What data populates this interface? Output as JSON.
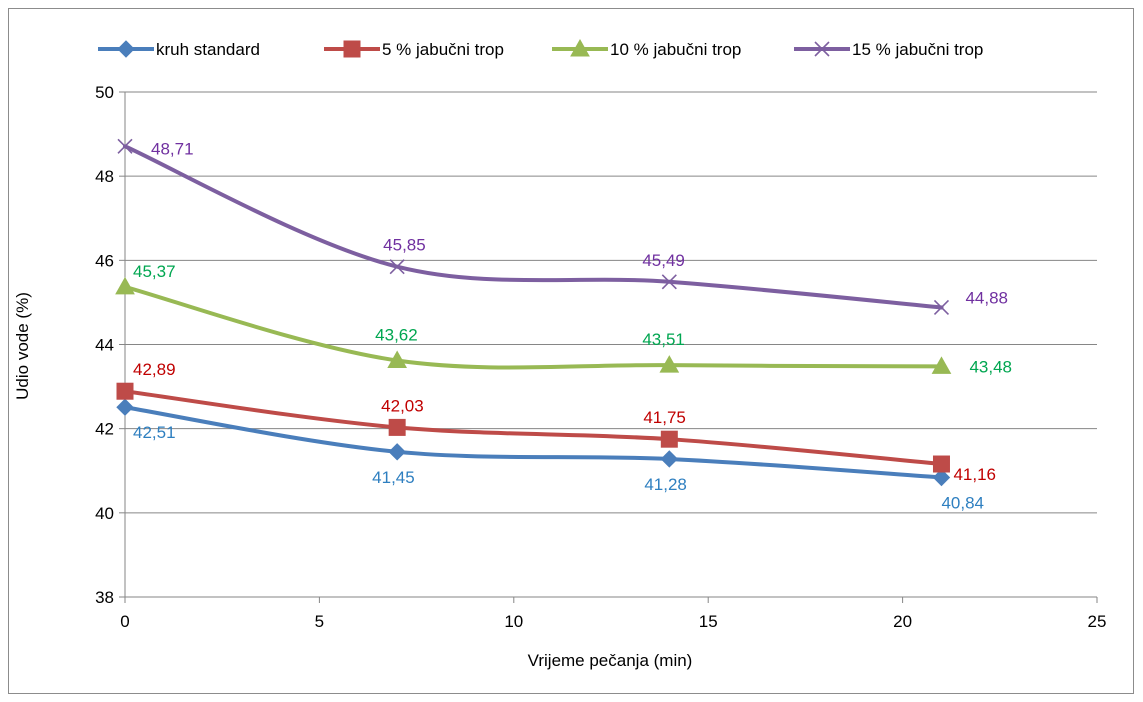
{
  "chart_data": {
    "type": "line",
    "xlabel": "Vrijeme pečanja (min)",
    "ylabel": "Udio vode (%)",
    "xlim": [
      0,
      25
    ],
    "ylim": [
      38,
      50
    ],
    "x_ticks": [
      "0",
      "5",
      "10",
      "15",
      "20",
      "25"
    ],
    "y_ticks": [
      "38",
      "40",
      "42",
      "44",
      "46",
      "48",
      "50"
    ],
    "grid": "horizontal",
    "legend_position": "top",
    "x": [
      0,
      7,
      14,
      21
    ],
    "series": [
      {
        "name": "kruh standard",
        "values": [
          42.51,
          41.45,
          41.28,
          40.84
        ],
        "labels": [
          "42,51",
          "41,45",
          "41,28",
          "40,84"
        ],
        "color": "#4a7ebb",
        "label_color": "#2e7fc0",
        "marker": "diamond"
      },
      {
        "name": "5 % jabučni trop",
        "values": [
          42.89,
          42.03,
          41.75,
          41.16
        ],
        "labels": [
          "42,89",
          "42,03",
          "41,75",
          "41,16"
        ],
        "color": "#be4b48",
        "label_color": "#c00000",
        "marker": "square"
      },
      {
        "name": "10 % jabučni trop",
        "values": [
          45.37,
          43.62,
          43.51,
          43.48
        ],
        "labels": [
          "45,37",
          "43,62",
          "43,51",
          "43,48"
        ],
        "color": "#98b954",
        "label_color": "#00a650",
        "marker": "triangle"
      },
      {
        "name": "15 % jabučni trop",
        "values": [
          48.71,
          45.85,
          45.49,
          44.88
        ],
        "labels": [
          "48,71",
          "45,85",
          "45,49",
          "44,88"
        ],
        "color": "#7d5fa0",
        "label_color": "#7030a0",
        "marker": "x"
      }
    ]
  }
}
